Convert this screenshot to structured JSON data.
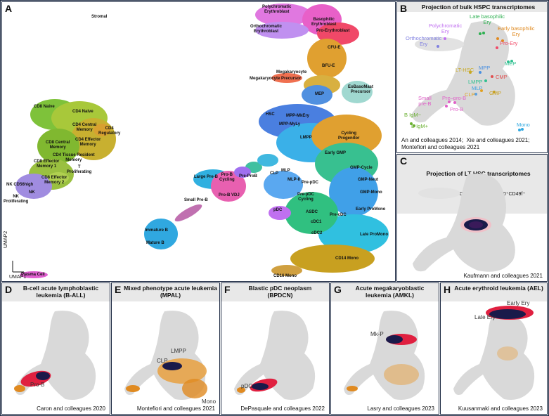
{
  "panelA": {
    "letter": "A",
    "axis_y": "UMAP2",
    "axis_x": "UMAP1",
    "labels": {
      "stromal": "Stromal",
      "poly": "Polychromatic\nErythroblast",
      "basophilic": "Basophilic\nErythroblast",
      "ortho": "Orthochromatic\nErythroblast",
      "proery": "Pro-Erythroblast",
      "cfue": "CFU-E",
      "bfue": "BFU-E",
      "megak": "Megakaryocyte",
      "megaprec": "Megakaryocyte Precursor",
      "mep": "MEP",
      "eobaso": "EoBasoMast\nPrecursor",
      "hsc": "HSC",
      "mppmkery": "MPP-MkEry",
      "mppmyly": "MPP-MyLy",
      "lmpp": "LMPP",
      "cycprog": "Cycling\nProgenitor",
      "earlygmp": "Early GMP",
      "gmpcycle": "GMP-Cycle",
      "gmpneut": "GMP-Neut",
      "gmpmono": "GMP-Mono",
      "earlypromono": "Early ProMono",
      "latepromono": "Late ProMono",
      "cd14": "CD14 Mono",
      "cd16": "CD16 Mono",
      "cdc1": "cDC1",
      "cdc2": "cDC2",
      "asdc": "ASDC",
      "precdc": "Pre-cDC",
      "pdc": "pDC",
      "prepdccyc": "Pre-pDC\nCycling",
      "prepdc": "Pre-pDC",
      "mlp": "MLP",
      "mlpii": "MLP-II",
      "clp": "CLP",
      "preprob": "Pre-ProB",
      "largepreb": "Large Pre-B",
      "probcyc": "Pro-B\nCycling",
      "probvdj": "Pro-B VDJ",
      "smallpreb": "Small Pre-B",
      "immb": "Immature B",
      "matb": "Mature B",
      "plasma": "Plasma Cell",
      "cd8naive": "CD8 Naive",
      "cd4naive": "CD4 Naive",
      "cd4cm": "CD4 Central\nMemory",
      "cd4reg": "CD4\nRegulatory",
      "cd4eff": "CD4 Effector\nMemory",
      "cd8cm": "CD8 Central\nMemory",
      "cd4trm": "CD4 Tissue Resident\nMemory",
      "cd8em1": "CD8 Effector\nMemory 1",
      "tprolif": "T\nProliferating",
      "cd8em2": "CD8 Effector\nMemory 2",
      "nkbright": "NK CD56high",
      "nk": "NK",
      "nkprolif": "NK\nProliferating"
    }
  },
  "panelB": {
    "letter": "B",
    "title": "Projection of bulk HSPC transcriptomes",
    "labels": {
      "latebaso": "Late basophilic\nEry",
      "poly": "Polychromatic\nEry",
      "earlybaso": "Early basophilic\nEry",
      "ortho": "Orthochromatic\nEry",
      "proery": "Pro-Ery",
      "mep": "MEP",
      "lthsc": "LT-HSC",
      "mpp": "MPP",
      "cmp": "CMP",
      "lmpp": "LMPP",
      "mlp": "MLP",
      "clp": "CLP",
      "gmp": "GMP",
      "small": "Small\npre-B",
      "proprob": "Pre–pro-B",
      "prob": "Pro-B",
      "bigm1": "B IgM−",
      "bigm2": "B IgM+",
      "mono": "Mono"
    },
    "cite": "An and colleagues 2014;  Xie and colleagues 2021;\nMontefiori and colleagues 2021"
  },
  "panelC": {
    "letter": "C",
    "title": "Projection of LT-HSC transcriptomes",
    "subtitle": "Lin−CD34⁺CD38⁻CD45RA⁻CD90⁺CD49f⁺",
    "cite": "Kaufmann and colleagues 2021"
  },
  "bottom": [
    {
      "letter": "D",
      "title": "B-cell acute lymphoblastic\nleukemia (B-ALL)",
      "labels": [
        "Pro-B"
      ],
      "cite": "Caron and colleagues 2020"
    },
    {
      "letter": "E",
      "title": "Mixed phenotype acute leukemia\n(MPAL)",
      "labels": [
        "LMPP",
        "CLP",
        "Mono"
      ],
      "cite": "Montefiori and colleagues 2021"
    },
    {
      "letter": "F",
      "title": "Blastic pDC neoplasm\n(BPDCN)",
      "labels": [
        "pDC"
      ],
      "cite": "DePasquale and colleagues 2022"
    },
    {
      "letter": "G",
      "title": "Acute megakaryoblastic\nleukemia (AMKL)",
      "labels": [
        "Mk-P"
      ],
      "cite": "Lasry and colleagues 2023"
    },
    {
      "letter": "H",
      "title": "Acute erythroid leukemia (AEL)",
      "labels": [
        "Early Ery",
        "Late Ery"
      ],
      "cite": "Kuusanmaki and colleagues 2023"
    }
  ],
  "colors": {
    "border": "#1e2b44",
    "title_bg": "#e8e8e8",
    "grey_cells": "#d9d9d9",
    "ery_pink": "#e06ad9",
    "cfue_orange": "#e0a030",
    "hsc_blue": "#4a7fe0",
    "gmp_teal": "#30c090",
    "mono_olive": "#c8a020",
    "tcell_green": "#8fc030",
    "nk_purple": "#9a80e0",
    "b_cyan": "#30a8e0",
    "dense_navy": "#1a1a4a",
    "leuk_red": "#e02040",
    "leuk_orange": "#e08a20"
  }
}
